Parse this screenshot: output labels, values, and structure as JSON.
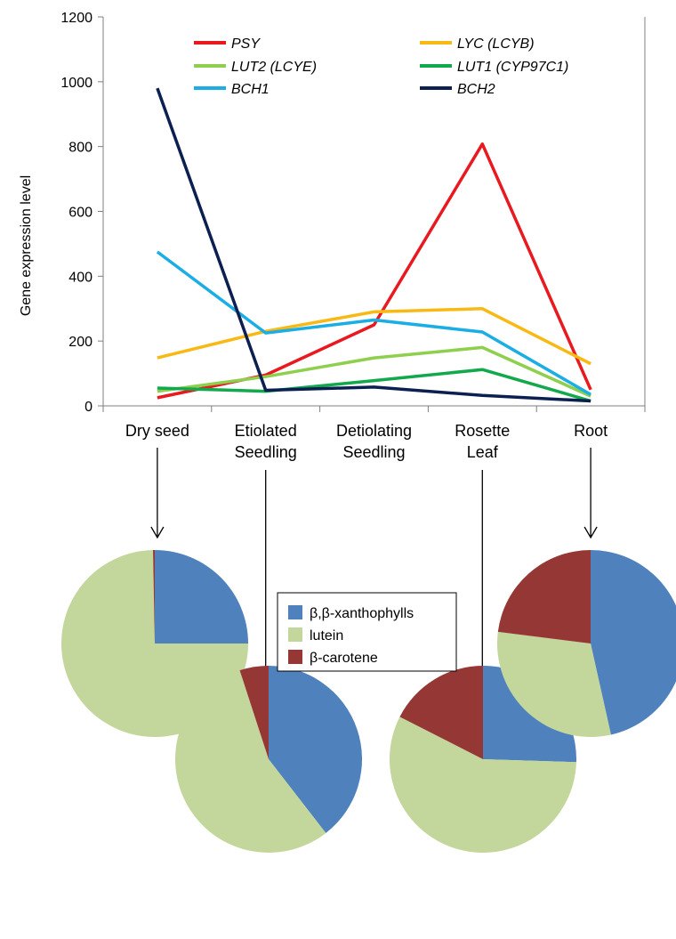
{
  "chart_data": [
    {
      "type": "line",
      "ylabel": "Gene expression level",
      "ylim": [
        0,
        1200
      ],
      "yticks": [
        0,
        200,
        400,
        600,
        800,
        1000,
        1200
      ],
      "categories": [
        [
          "Dry seed"
        ],
        [
          "Etiolated",
          "Seedling"
        ],
        [
          "Detiolating",
          "Seedling"
        ],
        [
          "Rosette",
          "Leaf"
        ],
        [
          "Root"
        ]
      ],
      "legend_placement": "top",
      "series": [
        {
          "name": "PSY",
          "color": "#e8191f",
          "values": [
            25,
            95,
            250,
            808,
            50
          ]
        },
        {
          "name": "LYC (LCYB)",
          "color": "#f9b914",
          "values": [
            148,
            230,
            290,
            300,
            130
          ]
        },
        {
          "name": "LUT2 (LCYE)",
          "color": "#8ecf4d",
          "values": [
            45,
            90,
            148,
            180,
            30
          ]
        },
        {
          "name": "LUT1 (CYP97C1)",
          "color": "#12a94d",
          "values": [
            55,
            45,
            78,
            112,
            15
          ]
        },
        {
          "name": "BCH1",
          "color": "#1aaee5",
          "values": [
            475,
            225,
            265,
            228,
            35
          ]
        },
        {
          "name": "BCH2",
          "color": "#0b2050",
          "values": [
            980,
            48,
            58,
            32,
            15
          ]
        }
      ]
    },
    {
      "type": "pie",
      "labels": [
        "β,β-xanthophylls",
        "lutein",
        "β-carotene"
      ],
      "colors": [
        "#4f81bd",
        "#c3d69b",
        "#953735"
      ],
      "legend_placement": "center",
      "pies": [
        {
          "category": "Dry seed",
          "values": [
            25,
            74.7,
            0.3
          ]
        },
        {
          "category": "Etiolated Seedling",
          "values": [
            39.5,
            55.5,
            5
          ]
        },
        {
          "category": "Rosette Leaf",
          "values": [
            25.5,
            57,
            17.5
          ]
        },
        {
          "category": "Root",
          "values": [
            46.5,
            30.5,
            23
          ]
        }
      ]
    }
  ]
}
